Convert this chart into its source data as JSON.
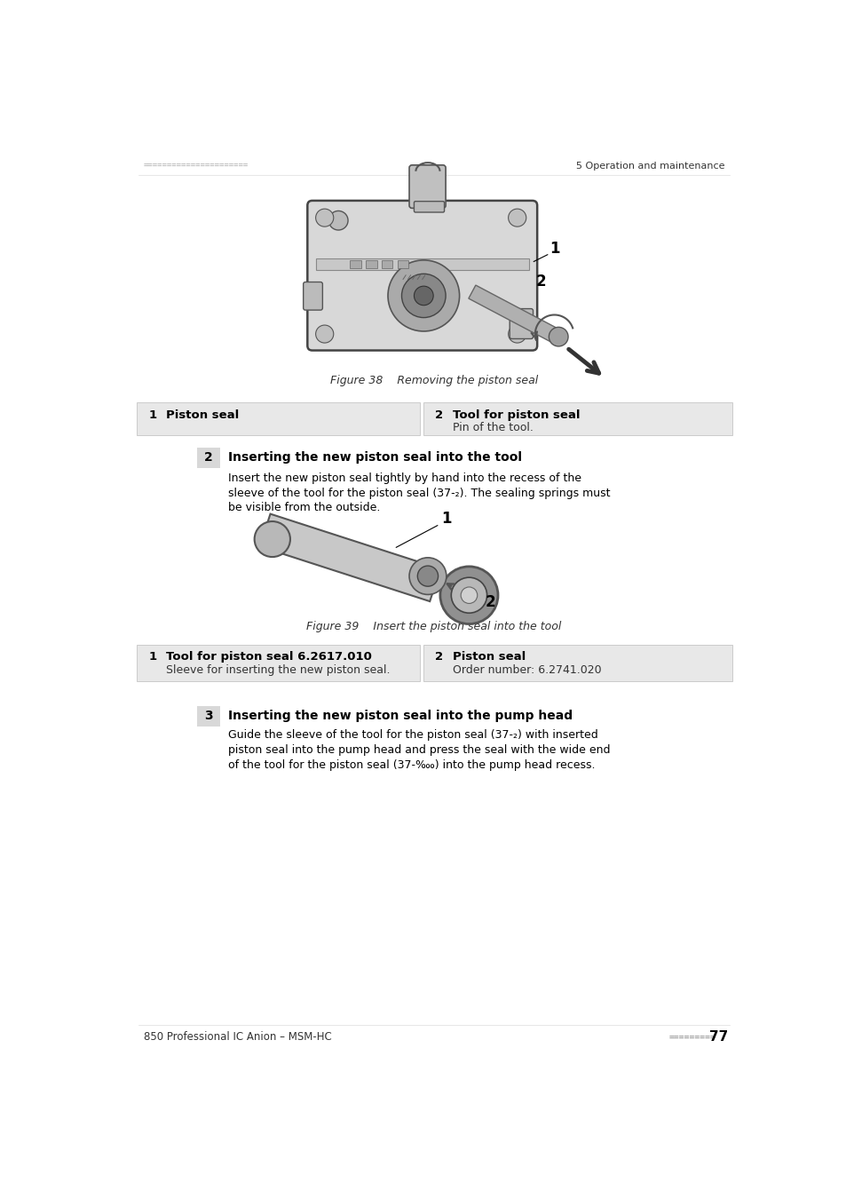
{
  "page_width": 9.54,
  "page_height": 13.5,
  "background_color": "#ffffff",
  "header_dots_color": "#c0c0c0",
  "header_right_text": "5 Operation and maintenance",
  "footer_left_text": "850 Professional IC Anion – MSM-HC",
  "figure38_caption": "Figure 38    Removing the piston seal",
  "figure39_caption": "Figure 39    Insert the piston seal into the tool",
  "table1_row1_num": "1",
  "table1_row1_label": "Piston seal",
  "table1_row1_desc": "",
  "table1_row2_num": "2",
  "table1_row2_label": "Tool for piston seal",
  "table1_row2_desc": "Pin of the tool.",
  "table2_row1_num": "1",
  "table2_row1_label": "Tool for piston seal 6.2617.010",
  "table2_row1_desc": "Sleeve for inserting the new piston seal.",
  "table2_row2_num": "2",
  "table2_row2_label": "Piston seal",
  "table2_row2_desc": "Order number: 6.2741.020",
  "section2_number": "2",
  "section2_title": "Inserting the new piston seal into the tool",
  "section2_line1": "Insert the new piston seal tightly by hand into the recess of the",
  "section2_line2": "sleeve of the tool for the piston seal (37-₂). The sealing springs must",
  "section2_line3": "be visible from the outside.",
  "section3_number": "3",
  "section3_title": "Inserting the new piston seal into the pump head",
  "section3_line1": "Guide the sleeve of the tool for the piston seal (37-₂) with inserted",
  "section3_line2": "piston seal into the pump head and press the seal with the wide end",
  "section3_line3": "of the tool for the piston seal (37-‱) into the pump head recess.",
  "table_bg_color": "#e8e8e8",
  "section_num_bg": "#d8d8d8",
  "text_color": "#000000",
  "gray_color": "#555555",
  "light_gray": "#aaaaaa",
  "mid_gray": "#888888",
  "dark_gray": "#444444"
}
